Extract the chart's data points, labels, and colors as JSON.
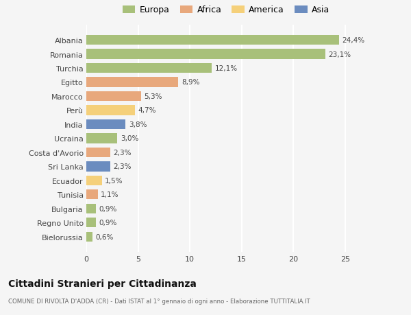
{
  "countries": [
    "Albania",
    "Romania",
    "Turchia",
    "Egitto",
    "Marocco",
    "Perù",
    "India",
    "Ucraina",
    "Costa d'Avorio",
    "Sri Lanka",
    "Ecuador",
    "Tunisia",
    "Bulgaria",
    "Regno Unito",
    "Bielorussia"
  ],
  "values": [
    24.4,
    23.1,
    12.1,
    8.9,
    5.3,
    4.7,
    3.8,
    3.0,
    2.3,
    2.3,
    1.5,
    1.1,
    0.9,
    0.9,
    0.6
  ],
  "labels": [
    "24,4%",
    "23,1%",
    "12,1%",
    "8,9%",
    "5,3%",
    "4,7%",
    "3,8%",
    "3,0%",
    "2,3%",
    "2,3%",
    "1,5%",
    "1,1%",
    "0,9%",
    "0,9%",
    "0,6%"
  ],
  "colors": [
    "#a8c07a",
    "#a8c07a",
    "#a8c07a",
    "#e8a87c",
    "#e8a87c",
    "#f5d07a",
    "#6b8cbf",
    "#a8c07a",
    "#e8a87c",
    "#6b8cbf",
    "#f5d07a",
    "#e8a87c",
    "#a8c07a",
    "#a8c07a",
    "#a8c07a"
  ],
  "legend": [
    {
      "label": "Europa",
      "color": "#a8c07a"
    },
    {
      "label": "Africa",
      "color": "#e8a87c"
    },
    {
      "label": "America",
      "color": "#f5d07a"
    },
    {
      "label": "Asia",
      "color": "#6b8cbf"
    }
  ],
  "title": "Cittadini Stranieri per Cittadinanza",
  "subtitle": "COMUNE DI RIVOLTA D'ADDA (CR) - Dati ISTAT al 1° gennaio di ogni anno - Elaborazione TUTTITALIA.IT",
  "xlim": [
    0,
    27
  ],
  "xticks": [
    0,
    5,
    10,
    15,
    20,
    25
  ],
  "bg_color": "#f5f5f5",
  "grid_color": "#ffffff"
}
